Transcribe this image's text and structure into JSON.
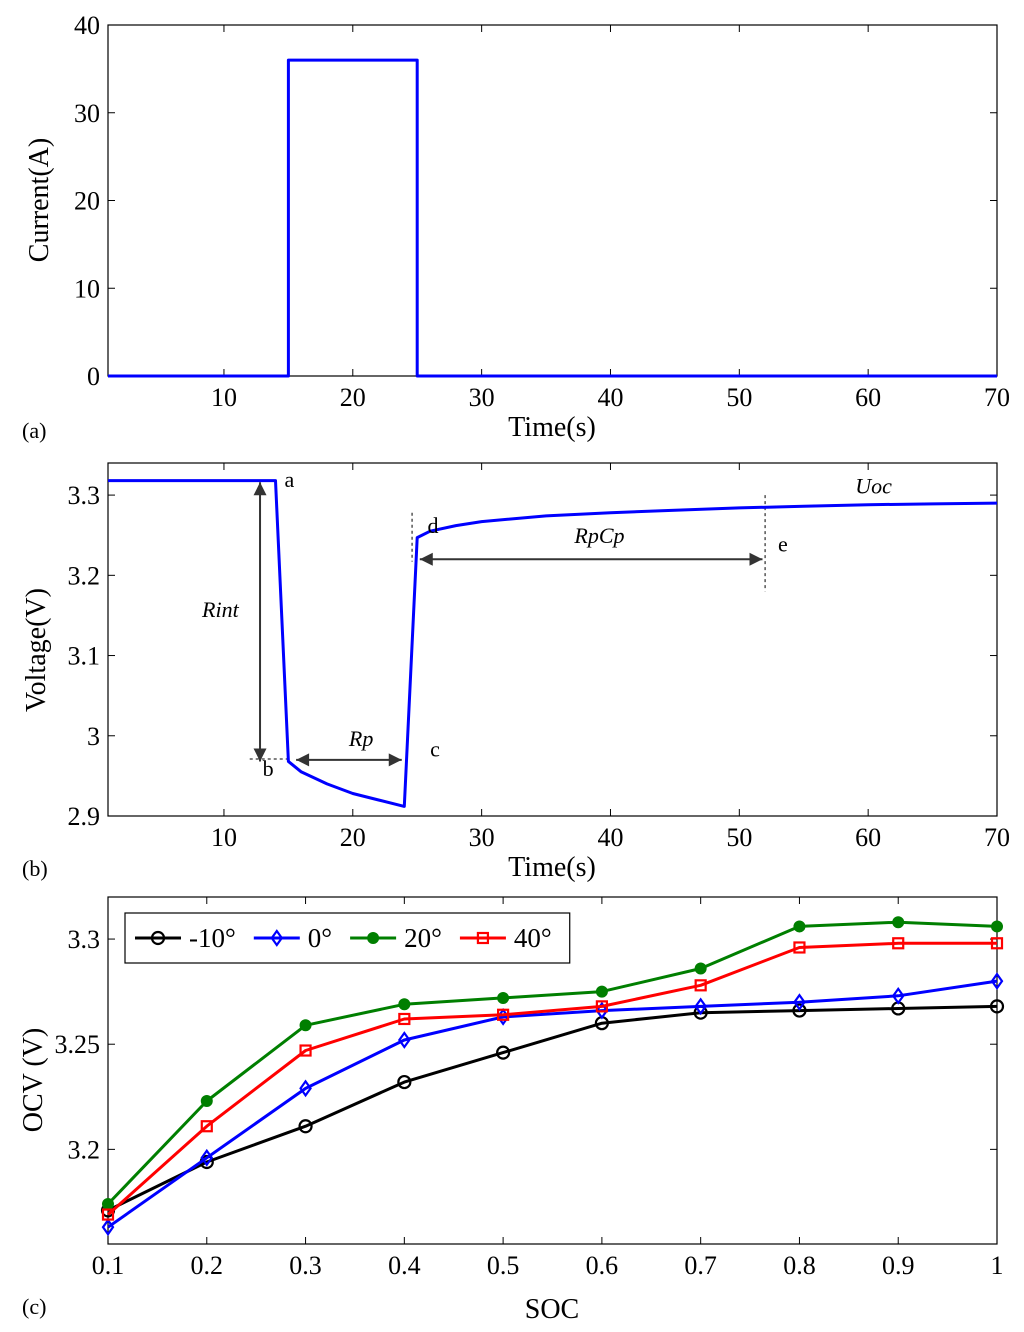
{
  "figure": {
    "panels": [
      {
        "tag": "(a)"
      },
      {
        "tag": "(b)"
      },
      {
        "tag": "(c)"
      }
    ]
  },
  "chart_data": [
    {
      "id": "a",
      "type": "line",
      "title": "",
      "xlabel": "Time(s)",
      "ylabel": "Current(A)",
      "xlim": [
        1,
        70
      ],
      "ylim": [
        0,
        40
      ],
      "xticks": [
        10,
        20,
        30,
        40,
        50,
        60,
        70
      ],
      "yticks": [
        0,
        10,
        20,
        30,
        40
      ],
      "series": [
        {
          "name": "current",
          "color": "#0000ff",
          "x": [
            1,
            15,
            15,
            25,
            25,
            70
          ],
          "y": [
            0,
            0,
            36,
            36,
            0,
            0
          ]
        }
      ]
    },
    {
      "id": "b",
      "type": "line",
      "title": "",
      "xlabel": "Time(s)",
      "ylabel": "Voltage(V)",
      "xlim": [
        1,
        70
      ],
      "ylim": [
        2.9,
        3.34
      ],
      "xticks": [
        10,
        20,
        30,
        40,
        50,
        60,
        70
      ],
      "yticks": [
        2.9,
        3.0,
        3.1,
        3.2,
        3.3
      ],
      "ytick_labels": [
        "2.9",
        "3",
        "3.1",
        "3.2",
        "3.3"
      ],
      "series": [
        {
          "name": "voltage",
          "color": "#0000ff",
          "x": [
            1,
            14,
            15,
            16,
            18,
            20,
            22,
            24,
            25,
            26,
            28,
            30,
            35,
            40,
            45,
            50,
            55,
            60,
            65,
            70
          ],
          "y": [
            3.318,
            3.318,
            2.968,
            2.955,
            2.94,
            2.928,
            2.92,
            2.912,
            3.247,
            3.255,
            3.262,
            3.267,
            3.274,
            3.278,
            3.281,
            3.284,
            3.286,
            3.288,
            3.289,
            3.29
          ]
        }
      ],
      "annotations": [
        {
          "text": "a",
          "x": 14.7,
          "y": 3.31,
          "style": "normal"
        },
        {
          "text": "b",
          "x": 13.0,
          "y": 2.95,
          "style": "normal"
        },
        {
          "text": "c",
          "x": 26.0,
          "y": 2.974,
          "style": "normal"
        },
        {
          "text": "d",
          "x": 25.8,
          "y": 3.253,
          "style": "normal"
        },
        {
          "text": "e",
          "x": 53.0,
          "y": 3.23,
          "style": "normal"
        },
        {
          "text": "Rint",
          "x": 8.3,
          "y": 3.148,
          "style": "italic"
        },
        {
          "text": "Rp",
          "x": 19.7,
          "y": 2.987,
          "style": "italic"
        },
        {
          "text": "RpCp",
          "x": 37.2,
          "y": 3.24,
          "style": "italic"
        },
        {
          "text": "Uoc",
          "x": 59.0,
          "y": 3.302,
          "style": "italic"
        }
      ],
      "arrows": [
        {
          "type": "double",
          "x1": 12.8,
          "y1": 3.316,
          "x2": 12.8,
          "y2": 2.968
        },
        {
          "type": "double",
          "x1": 15.6,
          "y1": 2.97,
          "x2": 23.8,
          "y2": 2.97
        },
        {
          "type": "double",
          "x1": 25.2,
          "y1": 3.22,
          "x2": 51.8,
          "y2": 3.22
        }
      ],
      "reference_lines": [
        {
          "x1": 12.0,
          "y1": 2.971,
          "x2": 15.2,
          "y2": 2.971
        },
        {
          "x1": 24.6,
          "y1": 3.278,
          "x2": 24.6,
          "y2": 3.217
        },
        {
          "x1": 52.0,
          "y1": 3.3,
          "x2": 52.0,
          "y2": 3.18
        }
      ]
    },
    {
      "id": "c",
      "type": "line",
      "title": "",
      "xlabel": "SOC",
      "ylabel": "OCV (V)",
      "xlim": [
        0.1,
        1.0
      ],
      "ylim": [
        3.155,
        3.32
      ],
      "x": [
        0.1,
        0.2,
        0.3,
        0.4,
        0.5,
        0.6,
        0.7,
        0.8,
        0.9,
        1.0
      ],
      "xticks": [
        0.1,
        0.2,
        0.3,
        0.4,
        0.5,
        0.6,
        0.7,
        0.8,
        0.9,
        1.0
      ],
      "xtick_labels": [
        "0.1",
        "0.2",
        "0.3",
        "0.4",
        "0.5",
        "0.6",
        "0.7",
        "0.8",
        "0.9",
        "1"
      ],
      "yticks": [
        3.2,
        3.25,
        3.3
      ],
      "ytick_labels": [
        "3.2",
        "3.25",
        "3.3"
      ],
      "legend_position": "top-left",
      "series": [
        {
          "name": "-10°",
          "color": "#000000",
          "marker": "circle",
          "values": [
            3.171,
            3.194,
            3.211,
            3.232,
            3.246,
            3.26,
            3.265,
            3.266,
            3.267,
            3.268
          ]
        },
        {
          "name": "0°",
          "color": "#0000ff",
          "marker": "diamond",
          "values": [
            3.163,
            3.196,
            3.229,
            3.252,
            3.263,
            3.266,
            3.268,
            3.27,
            3.273,
            3.28
          ]
        },
        {
          "name": "20°",
          "color": "#007f00",
          "marker": "dot",
          "values": [
            3.174,
            3.223,
            3.259,
            3.269,
            3.272,
            3.275,
            3.286,
            3.306,
            3.308,
            3.306
          ]
        },
        {
          "name": "40°",
          "color": "#ff0000",
          "marker": "square",
          "values": [
            3.169,
            3.211,
            3.247,
            3.262,
            3.264,
            3.268,
            3.278,
            3.296,
            3.298,
            3.298
          ]
        }
      ]
    }
  ]
}
